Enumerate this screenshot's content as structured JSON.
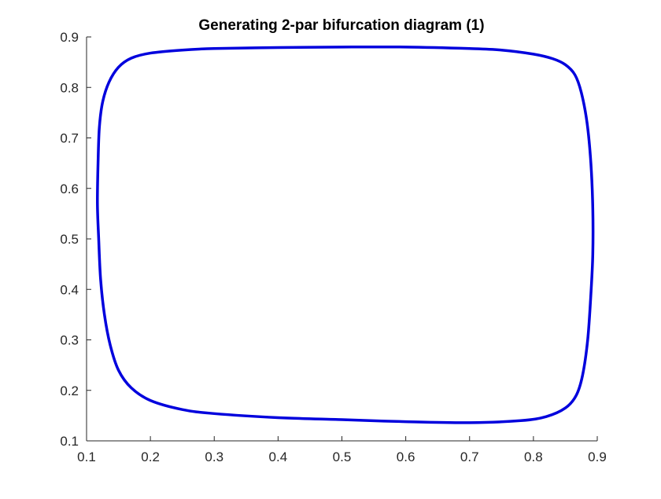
{
  "chart_data": {
    "type": "line",
    "title": "Generating 2-par bifurcation diagram (1)",
    "xlabel": "",
    "ylabel": "",
    "xlim": [
      0.1,
      0.9
    ],
    "ylim": [
      0.1,
      0.9
    ],
    "x_ticks": [
      "0.1",
      "0.2",
      "0.3",
      "0.4",
      "0.5",
      "0.6",
      "0.7",
      "0.8",
      "0.9"
    ],
    "y_ticks": [
      "0.1",
      "0.2",
      "0.3",
      "0.4",
      "0.5",
      "0.6",
      "0.7",
      "0.8",
      "0.9"
    ],
    "grid": false,
    "legend": "none",
    "series": [
      {
        "color": "#0000dd",
        "closed": true,
        "points": [
          [
            0.117,
            0.57
          ],
          [
            0.118,
            0.65
          ],
          [
            0.12,
            0.72
          ],
          [
            0.125,
            0.77
          ],
          [
            0.135,
            0.81
          ],
          [
            0.15,
            0.84
          ],
          [
            0.17,
            0.858
          ],
          [
            0.2,
            0.868
          ],
          [
            0.25,
            0.874
          ],
          [
            0.3,
            0.877
          ],
          [
            0.4,
            0.879
          ],
          [
            0.5,
            0.88
          ],
          [
            0.6,
            0.88
          ],
          [
            0.7,
            0.877
          ],
          [
            0.75,
            0.874
          ],
          [
            0.8,
            0.866
          ],
          [
            0.83,
            0.857
          ],
          [
            0.85,
            0.845
          ],
          [
            0.865,
            0.825
          ],
          [
            0.875,
            0.79
          ],
          [
            0.884,
            0.73
          ],
          [
            0.89,
            0.65
          ],
          [
            0.893,
            0.56
          ],
          [
            0.893,
            0.47
          ],
          [
            0.89,
            0.39
          ],
          [
            0.885,
            0.3
          ],
          [
            0.877,
            0.23
          ],
          [
            0.867,
            0.19
          ],
          [
            0.85,
            0.165
          ],
          [
            0.82,
            0.148
          ],
          [
            0.78,
            0.14
          ],
          [
            0.7,
            0.136
          ],
          [
            0.6,
            0.138
          ],
          [
            0.5,
            0.142
          ],
          [
            0.4,
            0.146
          ],
          [
            0.3,
            0.154
          ],
          [
            0.25,
            0.162
          ],
          [
            0.2,
            0.18
          ],
          [
            0.17,
            0.205
          ],
          [
            0.15,
            0.24
          ],
          [
            0.137,
            0.29
          ],
          [
            0.128,
            0.35
          ],
          [
            0.122,
            0.42
          ],
          [
            0.119,
            0.5
          ],
          [
            0.117,
            0.57
          ]
        ]
      }
    ]
  }
}
